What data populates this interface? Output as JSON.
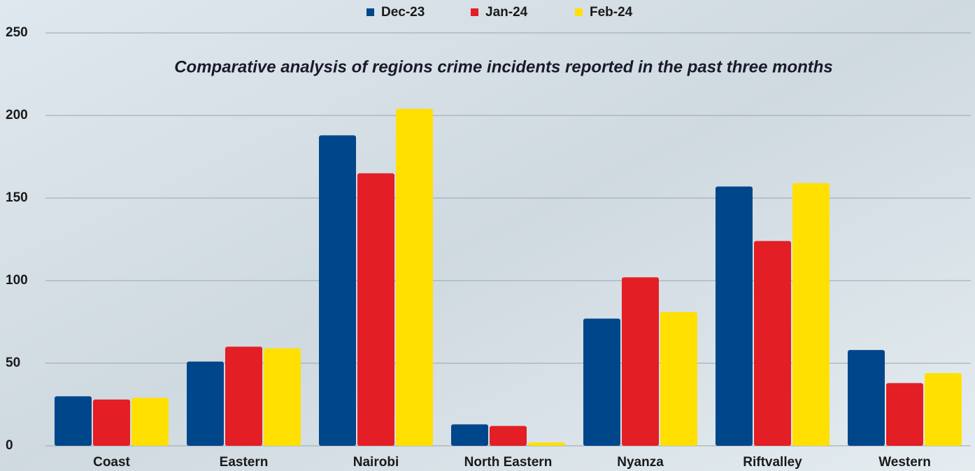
{
  "chart_data": {
    "type": "bar",
    "title": "Comparative analysis of regions crime incidents reported in the past three months",
    "categories": [
      "Coast",
      "Eastern",
      "Nairobi",
      "North Eastern",
      "Nyanza",
      "Riftvalley",
      "Western"
    ],
    "series": [
      {
        "name": "Dec-23",
        "color": "#00468b",
        "values": [
          30,
          51,
          188,
          13,
          77,
          157,
          58
        ]
      },
      {
        "name": "Jan-24",
        "color": "#e31e24",
        "values": [
          28,
          60,
          165,
          12,
          102,
          124,
          38
        ]
      },
      {
        "name": "Feb-24",
        "color": "#ffe000",
        "values": [
          29,
          59,
          204,
          2,
          81,
          159,
          44
        ]
      }
    ],
    "ylim": [
      0,
      250
    ],
    "yticks": [
      0,
      50,
      100,
      150,
      200,
      250
    ],
    "grid": true,
    "legend": "top"
  }
}
